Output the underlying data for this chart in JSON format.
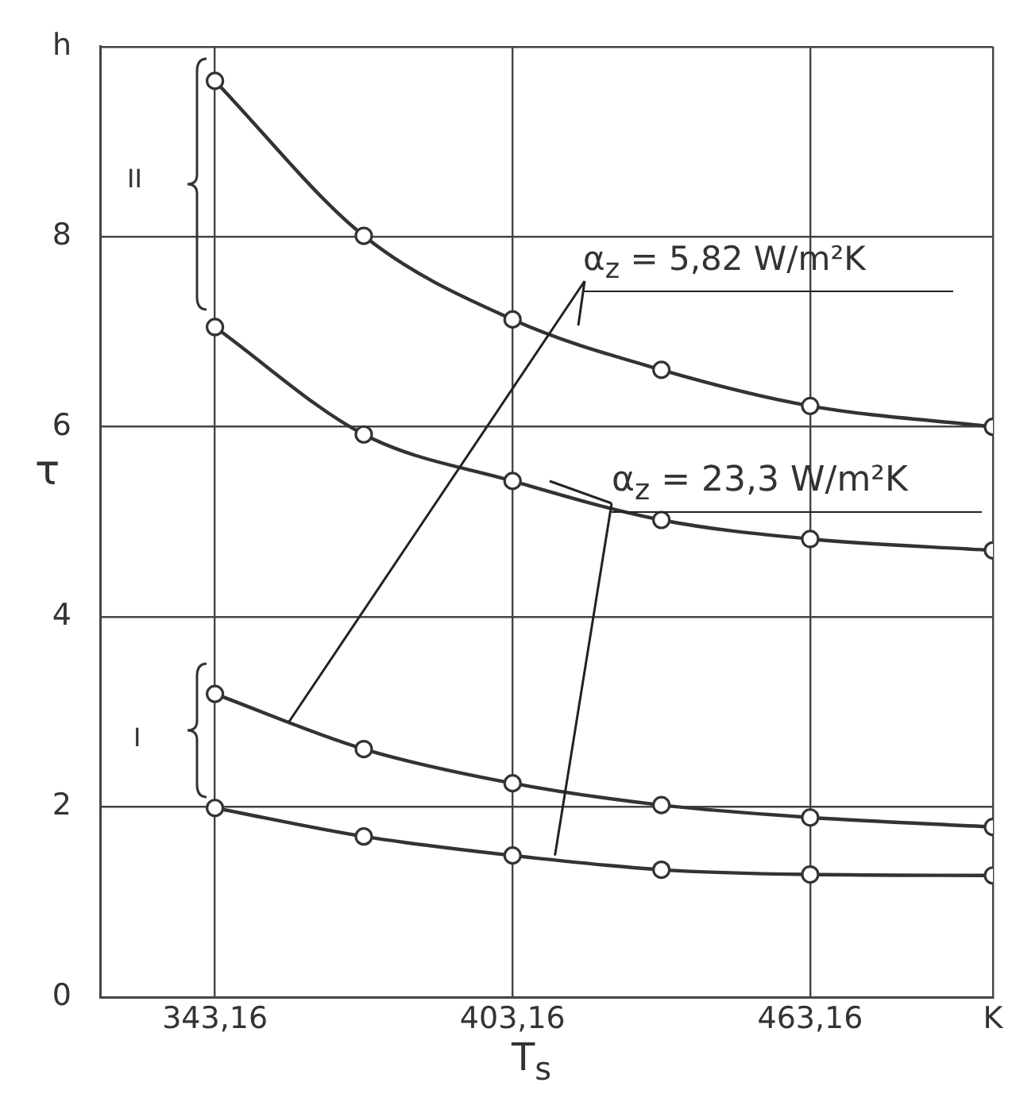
{
  "chart_data": {
    "type": "line",
    "xlabel": "T$_{s}$",
    "ylabel": "τ",
    "x": [
      343.16,
      373.16,
      403.16,
      433.16,
      463.16,
      500
    ],
    "series": [
      {
        "color": "#333333",
        "values": [
          9.64,
          8.01,
          7.13,
          6.6,
          6.22,
          6.0
        ]
      },
      {
        "color": "#333333",
        "values": [
          7.05,
          5.92,
          5.43,
          5.02,
          4.82,
          4.7
        ]
      },
      {
        "color": "#333333",
        "values": [
          3.19,
          2.61,
          2.25,
          2.02,
          1.89,
          1.79
        ]
      },
      {
        "color": "#333333",
        "values": [
          1.99,
          1.69,
          1.49,
          1.34,
          1.29,
          1.28
        ]
      }
    ],
    "xlim": [
      320,
      500
    ],
    "xticks": [
      {
        "value": 343.16,
        "label": "343,16"
      },
      {
        "value": 403.16,
        "label": "403,16"
      },
      {
        "value": 463.16,
        "label": "463,16"
      },
      {
        "value": 500,
        "label": "K"
      }
    ],
    "ylim": [
      0,
      10
    ],
    "yticks": [
      0,
      2,
      4,
      6,
      8,
      {
        "value": 10,
        "label": "h"
      }
    ],
    "annotations": [
      {
        "text": "α$_{z}$ = 5,82 W/m²K",
        "x": 358,
        "y": 2.89
      },
      {
        "text": "α$_{z}$ = 23,3 W/m²K",
        "x": 411.7,
        "y": 1.49
      },
      "II",
      "I"
    ],
    "grid": true,
    "legend": false,
    "marker": "circle",
    "line_style": "solid"
  }
}
